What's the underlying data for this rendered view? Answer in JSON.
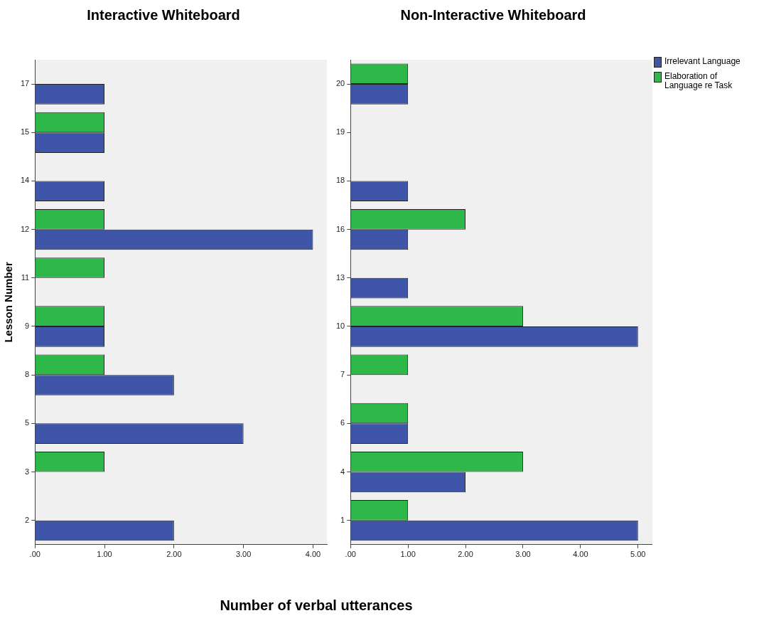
{
  "chart_data": [
    {
      "type": "bar",
      "orientation": "horizontal",
      "title": "Interactive Whiteboard",
      "ylabel": "Lesson Number",
      "xlabel": "Number of verbal utterances",
      "grid": false,
      "legend": false,
      "categories": [
        "17",
        "15",
        "14",
        "12",
        "11",
        "9",
        "8",
        "5",
        "3",
        "2"
      ],
      "series": [
        {
          "color": "#3f56a8",
          "values": [
            1,
            1,
            1,
            4,
            null,
            1,
            2,
            3,
            null,
            2
          ]
        },
        {
          "color": "#2fb84a",
          "values": [
            null,
            1,
            null,
            1,
            1,
            1,
            1,
            null,
            1,
            null
          ]
        }
      ],
      "xlim": [
        0,
        4.2
      ],
      "xticks": [
        {
          "value": 0,
          "label": ".00"
        },
        {
          "value": 1,
          "label": "1.00"
        },
        {
          "value": 2,
          "label": "2.00"
        },
        {
          "value": 3,
          "label": "3.00"
        },
        {
          "value": 4,
          "label": "4.00"
        }
      ]
    },
    {
      "type": "bar",
      "orientation": "horizontal",
      "title": "Non-Interactive Whiteboard",
      "grid": false,
      "legend": "right",
      "categories": [
        "20",
        "19",
        "18",
        "16",
        "13",
        "10",
        "7",
        "6",
        "4",
        "1"
      ],
      "series": [
        {
          "name": "Irrelevant Language",
          "color": "#3f56a8",
          "values": [
            1,
            null,
            1,
            1,
            1,
            5,
            null,
            1,
            2,
            5
          ]
        },
        {
          "name": "Elaboration of Language re Task",
          "color": "#2fb84a",
          "values": [
            1,
            null,
            null,
            2,
            null,
            3,
            1,
            1,
            3,
            1
          ]
        }
      ],
      "xlim": [
        0,
        5.25
      ],
      "xticks": [
        {
          "value": 0,
          "label": ".00"
        },
        {
          "value": 1,
          "label": "1.00"
        },
        {
          "value": 2,
          "label": "2.00"
        },
        {
          "value": 3,
          "label": "3.00"
        },
        {
          "value": 4,
          "label": "4.00"
        },
        {
          "value": 5,
          "label": "5.00"
        }
      ]
    }
  ]
}
